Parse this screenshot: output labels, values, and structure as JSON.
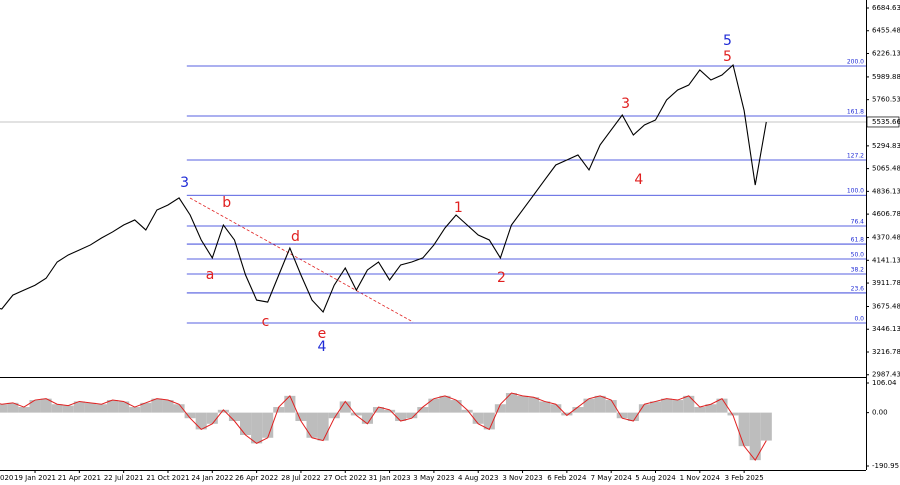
{
  "chart_data": {
    "type": "line",
    "categories": [
      "020",
      null,
      null,
      null,
      "19 Jan 2021",
      null,
      null,
      null,
      "21 Apr 2021",
      null,
      null,
      null,
      "22 Jul 2021",
      null,
      null,
      null,
      "21 Oct 2021",
      null,
      null,
      null,
      "24 Jan 2022",
      null,
      null,
      null,
      "26 Apr 2022",
      null,
      null,
      null,
      "28 Jul 2022",
      null,
      null,
      null,
      "27 Oct 2022",
      null,
      null,
      null,
      "31 Jan 2023",
      null,
      null,
      null,
      "3 May 2023",
      null,
      null,
      null,
      "4 Aug 2023",
      null,
      null,
      null,
      "3 Nov 2023",
      null,
      null,
      null,
      "6 Feb 2024",
      null,
      null,
      null,
      "7 May 2024",
      null,
      null,
      null,
      "5 Aug 2024",
      null,
      null,
      null,
      "1 Nov 2024",
      null,
      null,
      null,
      "3 Feb 2025",
      null,
      null
    ],
    "series": [
      {
        "color": "#000000",
        "values": [
          3680,
          3650,
          3790,
          3840,
          3890,
          3960,
          4124,
          4195,
          4245,
          4296,
          4366,
          4427,
          4497,
          4548,
          4447,
          4648,
          4699,
          4770,
          4598,
          4346,
          4165,
          4497,
          4346,
          3993,
          3740,
          3720,
          3993,
          4265,
          3993,
          3740,
          3620,
          3890,
          4064,
          3840,
          4044,
          4124,
          3943,
          4094,
          4124,
          4165,
          4296,
          4467,
          4598,
          4497,
          4396,
          4346,
          4165,
          4497,
          4648,
          4799,
          4951,
          5102,
          5152,
          5203,
          5052,
          5304,
          5455,
          5606,
          5404,
          5505,
          5556,
          5757,
          5858,
          5908,
          6060,
          5959,
          6009,
          6110,
          5650,
          4900,
          5535.66
        ]
      }
    ],
    "ylim": [
      2964.7,
      6765.3
    ],
    "yticks": [
      6684.63,
      6455.48,
      6226.13,
      5989.88,
      5760.53,
      5535.66,
      5294.83,
      5065.48,
      4836.13,
      4606.78,
      4370.48,
      4141.13,
      3911.78,
      3675.48,
      3446.13,
      3216.78,
      2987.43
    ],
    "current_price_tick": 5,
    "fib_color": "#1f2bd6",
    "fib_levels": [
      {
        "label": "0.0",
        "value": 3509
      },
      {
        "label": "23.6",
        "value": 3812
      },
      {
        "label": "38.2",
        "value": 4003
      },
      {
        "label": "50.0",
        "value": 4154
      },
      {
        "label": "61.8",
        "value": 4305
      },
      {
        "label": "76.4",
        "value": 4487
      },
      {
        "label": "100.0",
        "value": 4797
      },
      {
        "label": "127.2",
        "value": 5152
      },
      {
        "label": "161.8",
        "value": 5596
      },
      {
        "label": "200.0",
        "value": 6100
      }
    ],
    "annotations": [
      {
        "text": "3",
        "color": "#1f2bd6",
        "x": 17.5,
        "y": 4920
      },
      {
        "text": "a",
        "color": "#e02020",
        "x": 19.8,
        "y": 3993
      },
      {
        "text": "b",
        "color": "#e02020",
        "x": 21.3,
        "y": 4719
      },
      {
        "text": "c",
        "color": "#e02020",
        "x": 24.8,
        "y": 3519
      },
      {
        "text": "d",
        "color": "#e02020",
        "x": 27.5,
        "y": 4376
      },
      {
        "text": "e",
        "color": "#e02020",
        "x": 29.9,
        "y": 3398
      },
      {
        "text": "4",
        "color": "#1f2bd6",
        "x": 29.9,
        "y": 3267
      },
      {
        "text": "1",
        "color": "#e02020",
        "x": 42.2,
        "y": 4668
      },
      {
        "text": "2",
        "color": "#e02020",
        "x": 46.1,
        "y": 3963
      },
      {
        "text": "3",
        "color": "#e02020",
        "x": 57.3,
        "y": 5717
      },
      {
        "text": "4",
        "color": "#e02020",
        "x": 58.5,
        "y": 4951
      },
      {
        "text": "5",
        "color": "#e02020",
        "x": 66.5,
        "y": 6191
      },
      {
        "text": "5",
        "color": "#1f2bd6",
        "x": 66.5,
        "y": 6352
      }
    ],
    "oscillator": {
      "type": "bar",
      "bar_color": "#bdbdbd",
      "line_color": "#e02020",
      "values": [
        40,
        30,
        35,
        20,
        45,
        50,
        30,
        25,
        40,
        35,
        30,
        45,
        40,
        20,
        35,
        50,
        45,
        30,
        -20,
        -60,
        -40,
        10,
        -30,
        -80,
        -110,
        -90,
        20,
        60,
        -30,
        -90,
        -100,
        -20,
        40,
        -10,
        -40,
        20,
        10,
        -30,
        -20,
        20,
        50,
        60,
        45,
        10,
        -40,
        -60,
        30,
        70,
        60,
        55,
        40,
        30,
        -10,
        20,
        50,
        60,
        45,
        -20,
        -30,
        30,
        40,
        50,
        45,
        60,
        20,
        30,
        50,
        -10,
        -120,
        -170,
        -100
      ],
      "ylim": [
        -205.3,
        123.9
      ],
      "yticks": [
        106.04,
        {
          "value": 0,
          "label": "0.00"
        },
        -190.95
      ]
    }
  }
}
